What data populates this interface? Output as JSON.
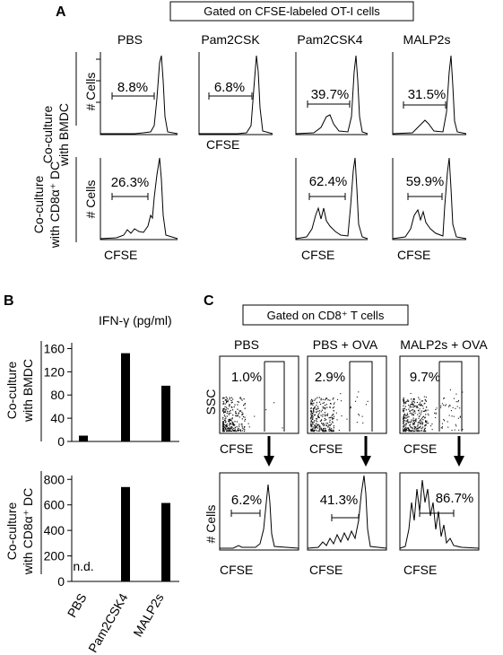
{
  "panel_a": {
    "letter": "A",
    "header": "Gated on CFSE-labeled OT-I cells",
    "columns": [
      "PBS",
      "Pam2CSK",
      "Pam2CSK4",
      "MALP2s"
    ],
    "row_labels": {
      "bmdc": [
        "Co-culture",
        "with BMDC"
      ],
      "cd8": [
        "Co-culture",
        "with CD8α⁺ DC"
      ]
    },
    "y_axis": "# Cells",
    "x_axis": "CFSE",
    "bmdc_percentages": [
      "8.8%",
      "6.8%",
      "39.7%",
      "31.5%"
    ],
    "cd8_percentages": [
      "26.3%",
      "62.4%",
      "59.9%"
    ]
  },
  "panel_b": {
    "letter": "B",
    "title": "IFN-γ (pg/ml)",
    "row_labels": {
      "bmdc": [
        "Co-culture",
        "with BMDC"
      ],
      "cd8": [
        "Co-culture",
        "with CD8α⁺ DC"
      ]
    },
    "nd_label": "n.d.",
    "chart_data": [
      {
        "type": "bar",
        "title": "IFN-γ (pg/ml)",
        "categories": [
          "PBS",
          "Pam2CSK4",
          "MALP2s"
        ],
        "values": [
          10,
          152,
          96
        ],
        "ylim": [
          0,
          170
        ],
        "yticks": [
          0,
          40,
          80,
          120,
          160
        ]
      },
      {
        "type": "bar",
        "categories": [
          "PBS",
          "Pam2CSK4",
          "MALP2s"
        ],
        "values": [
          0,
          740,
          615
        ],
        "ylim": [
          0,
          830
        ],
        "yticks": [
          0,
          200,
          400,
          600,
          800
        ]
      }
    ]
  },
  "panel_c": {
    "letter": "C",
    "header": "Gated on CD8⁺ T cells",
    "columns": [
      "PBS",
      "PBS + OVA",
      "MALP2s + OVA"
    ],
    "dot_y_axis": "SSC",
    "hist_y_axis": "# Cells",
    "x_axis": "CFSE",
    "dot_percentages": [
      "1.0%",
      "2.9%",
      "9.7%"
    ],
    "hist_percentages": [
      "6.2%",
      "41.3%",
      "86.7%"
    ]
  }
}
